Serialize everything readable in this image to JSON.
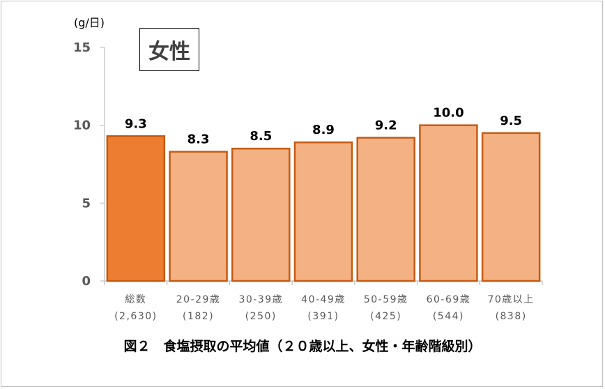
{
  "caption": "図２　食塩摂取の平均値（２０歳以上、女性・年齢階級別）",
  "legend_box": "女性",
  "chart_data": {
    "type": "bar",
    "unit_label": "(g/日)",
    "categories": [
      [
        "総数",
        "(2,630)"
      ],
      [
        "20-29歳",
        "(182)"
      ],
      [
        "30-39歳",
        "(250)"
      ],
      [
        "40-49歳",
        "(391)"
      ],
      [
        "50-59歳",
        "(425)"
      ],
      [
        "60-69歳",
        "(544)"
      ],
      [
        "70歳以上",
        "(838)"
      ]
    ],
    "values": [
      9.3,
      8.3,
      8.5,
      8.9,
      9.2,
      10.0,
      9.5
    ],
    "value_labels": [
      "9.3",
      "8.3",
      "8.5",
      "8.9",
      "9.2",
      "10.0",
      "9.5"
    ],
    "ylim": [
      0,
      15
    ],
    "yticks": [
      "0",
      "5",
      "10",
      "15"
    ],
    "colors": {
      "highlight_fill": "#ed7d31",
      "bar_fill": "#f4b183",
      "bar_stroke": "#c55a11",
      "axis": "#bfbfbf"
    }
  }
}
